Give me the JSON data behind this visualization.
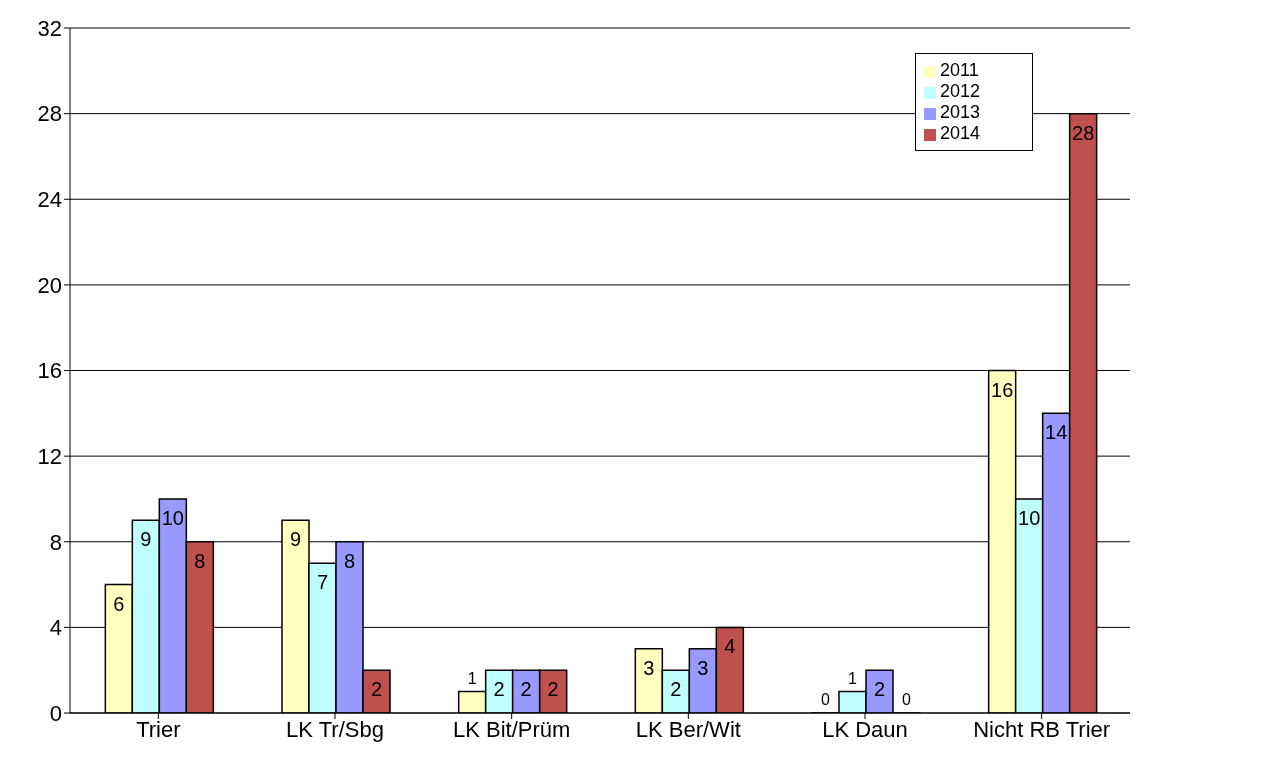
{
  "chart_data": {
    "type": "bar",
    "categories": [
      "Trier",
      "LK Tr/Sbg",
      "LK Bit/Prüm",
      "LK Ber/Wit",
      "LK Daun",
      "Nicht RB Trier"
    ],
    "series": [
      {
        "name": "2011",
        "color": "#ffffc0",
        "values": [
          6,
          9,
          1,
          3,
          0,
          16
        ]
      },
      {
        "name": "2012",
        "color": "#c0ffff",
        "values": [
          9,
          7,
          2,
          2,
          1,
          10
        ]
      },
      {
        "name": "2013",
        "color": "#9999ff",
        "values": [
          10,
          8,
          2,
          3,
          2,
          14
        ]
      },
      {
        "name": "2014",
        "color": "#c0504d",
        "values": [
          8,
          2,
          2,
          4,
          0,
          28
        ]
      }
    ],
    "ylim": [
      0,
      32
    ],
    "yticks": [
      0,
      4,
      8,
      12,
      16,
      20,
      24,
      28,
      32
    ],
    "grid": "y",
    "legend": "top right",
    "data_labels": true
  }
}
